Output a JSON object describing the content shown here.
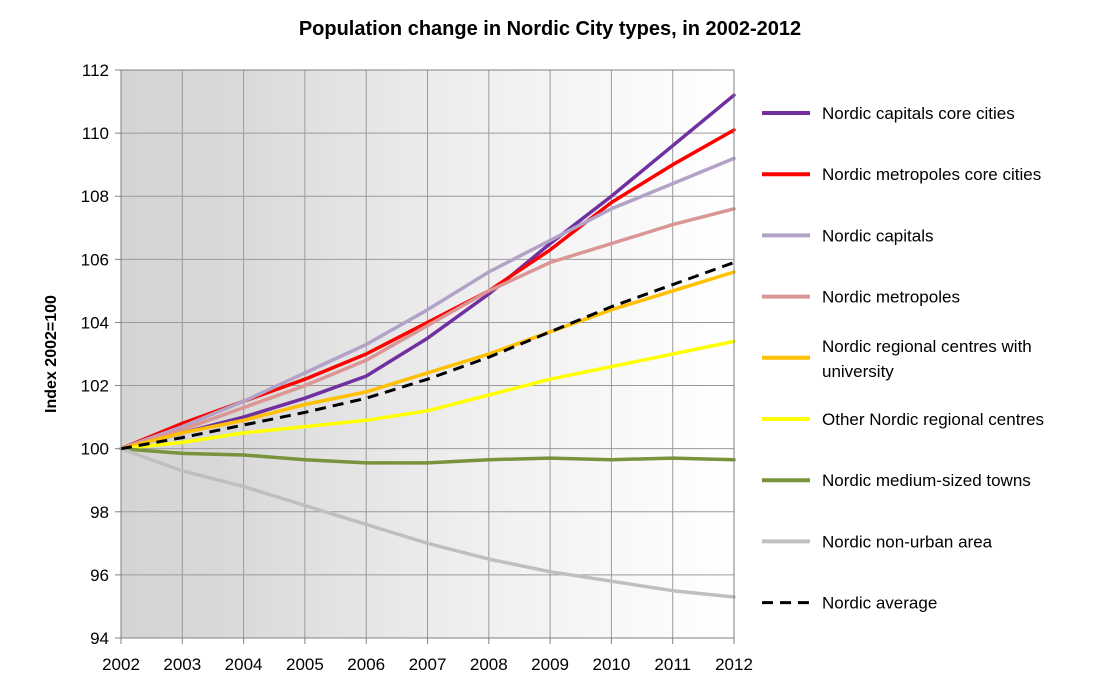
{
  "chart_data": {
    "type": "line",
    "title": "Population change in Nordic City types, in 2002-2012",
    "xlabel": "",
    "ylabel": "Index 2002=100",
    "ylim": [
      94,
      112
    ],
    "yticks": [
      94,
      96,
      98,
      100,
      102,
      104,
      106,
      108,
      110,
      112
    ],
    "x": [
      2002,
      2003,
      2004,
      2005,
      2006,
      2007,
      2008,
      2009,
      2010,
      2011,
      2012
    ],
    "grid": true,
    "legend_position": "right",
    "series": [
      {
        "name": "Nordic capitals core cities",
        "color": "#7030a0",
        "dashed": false,
        "values": [
          100,
          100.5,
          101.0,
          101.6,
          102.3,
          103.5,
          104.9,
          106.5,
          108.0,
          109.6,
          111.2
        ]
      },
      {
        "name": "Nordic metropoles core cities",
        "color": "#ff0000",
        "dashed": false,
        "values": [
          100,
          100.8,
          101.5,
          102.2,
          103.0,
          104.0,
          105.0,
          106.3,
          107.8,
          109.0,
          110.1
        ]
      },
      {
        "name": "Nordic capitals",
        "color": "#b3a2c7",
        "dashed": false,
        "values": [
          100,
          100.7,
          101.5,
          102.4,
          103.3,
          104.4,
          105.6,
          106.6,
          107.6,
          108.4,
          109.2
        ]
      },
      {
        "name": "Nordic metropoles",
        "color": "#d99694",
        "dashed": false,
        "values": [
          100,
          100.6,
          101.3,
          102.0,
          102.8,
          103.9,
          105.0,
          105.9,
          106.5,
          107.1,
          107.6
        ]
      },
      {
        "name": "Nordic regional centres with university",
        "color": "#ffc000",
        "dashed": false,
        "values": [
          100,
          100.5,
          100.9,
          101.4,
          101.8,
          102.4,
          103.0,
          103.7,
          104.4,
          105.0,
          105.6
        ]
      },
      {
        "name": "Other Nordic regional centres",
        "color": "#ffff00",
        "dashed": false,
        "values": [
          100,
          100.2,
          100.5,
          100.7,
          100.9,
          101.2,
          101.7,
          102.2,
          102.6,
          103.0,
          103.4
        ]
      },
      {
        "name": "Nordic medium-sized towns",
        "color": "#77933c",
        "dashed": false,
        "values": [
          100,
          99.85,
          99.8,
          99.65,
          99.55,
          99.55,
          99.65,
          99.7,
          99.65,
          99.7,
          99.65
        ]
      },
      {
        "name": "Nordic non-urban area",
        "color": "#bfbfbf",
        "dashed": false,
        "values": [
          100,
          99.3,
          98.8,
          98.2,
          97.6,
          97.0,
          96.5,
          96.1,
          95.8,
          95.5,
          95.3
        ]
      },
      {
        "name": "Nordic average",
        "color": "#000000",
        "dashed": true,
        "values": [
          100,
          100.35,
          100.75,
          101.15,
          101.6,
          102.2,
          102.9,
          103.7,
          104.5,
          105.2,
          105.9
        ]
      }
    ]
  }
}
